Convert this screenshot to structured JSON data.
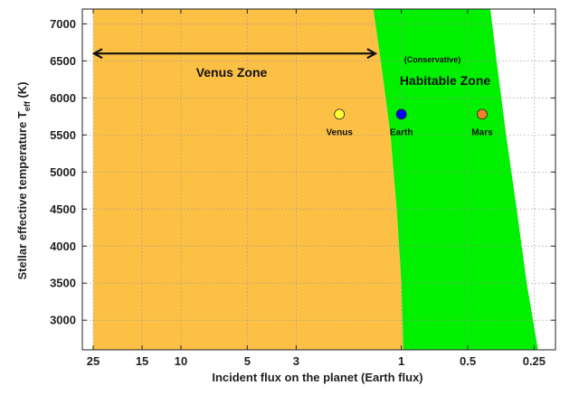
{
  "chart_data": {
    "type": "scatter",
    "xlabel": "Incident flux on the planet (Earth flux)",
    "ylabel_main": "Stellar effective temperature T",
    "ylabel_sub": "eff",
    "ylabel_unit": " (K)",
    "x_scale": "log",
    "x_reversed": true,
    "xlim": [
      28,
      0.2
    ],
    "ylim": [
      2600,
      7200
    ],
    "x_ticks": [
      25,
      15,
      10,
      5,
      3,
      1,
      0.5,
      0.25
    ],
    "x_tick_labels": [
      "25",
      "15",
      "10",
      "5",
      "3",
      "1",
      "0.5",
      "0.25"
    ],
    "y_ticks": [
      3000,
      3500,
      4000,
      4500,
      5000,
      5500,
      6000,
      6500,
      7000
    ],
    "y_tick_labels": [
      "3000",
      "3500",
      "4000",
      "4500",
      "5000",
      "5500",
      "6000",
      "6500",
      "7000"
    ],
    "grid": true,
    "regions": [
      {
        "name": "Venus Zone",
        "color": "#fcc044",
        "inner_flux_limit": 25,
        "outer_boundary": [
          {
            "teff": 2600,
            "flux": 0.98
          },
          {
            "teff": 3500,
            "flux": 1.0
          },
          {
            "teff": 4500,
            "flux": 1.05
          },
          {
            "teff": 5500,
            "flux": 1.12
          },
          {
            "teff": 6500,
            "flux": 1.24
          },
          {
            "teff": 7200,
            "flux": 1.34
          }
        ]
      },
      {
        "name": "Habitable Zone",
        "subtitle": "(Conservative)",
        "color": "#00f000",
        "inner_boundary": [
          {
            "teff": 2600,
            "flux": 0.98
          },
          {
            "teff": 3500,
            "flux": 1.0
          },
          {
            "teff": 4500,
            "flux": 1.05
          },
          {
            "teff": 5500,
            "flux": 1.12
          },
          {
            "teff": 6500,
            "flux": 1.24
          },
          {
            "teff": 7200,
            "flux": 1.34
          }
        ],
        "outer_boundary": [
          {
            "teff": 2600,
            "flux": 0.24
          },
          {
            "teff": 3500,
            "flux": 0.27
          },
          {
            "teff": 4500,
            "flux": 0.3
          },
          {
            "teff": 5500,
            "flux": 0.335
          },
          {
            "teff": 6500,
            "flux": 0.37
          },
          {
            "teff": 7200,
            "flux": 0.395
          }
        ]
      }
    ],
    "arrow": {
      "from_flux": 25,
      "to_flux": 1.3,
      "teff": 6600
    },
    "planets": [
      {
        "name": "Venus",
        "flux": 1.91,
        "teff": 5780,
        "color": "#ffff33"
      },
      {
        "name": "Earth",
        "flux": 1.0,
        "teff": 5780,
        "color": "#0000ff"
      },
      {
        "name": "Mars",
        "flux": 0.43,
        "teff": 5780,
        "color": "#f08030"
      }
    ],
    "annotations": {
      "venus_zone_label": "Venus Zone",
      "hz_subtitle": "(Conservative)",
      "hz_label": "Habitable Zone"
    }
  }
}
